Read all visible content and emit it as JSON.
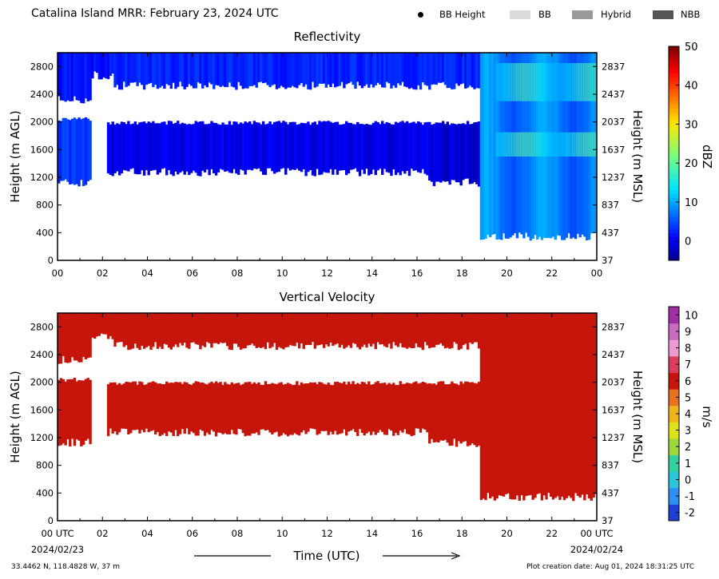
{
  "header": {
    "title": "Catalina Island MRR:  February 23, 2024 UTC",
    "legend": [
      {
        "label": "BB Height",
        "marker": "dot",
        "color": "#000000"
      },
      {
        "label": "BB",
        "marker": "swatch",
        "color": "#dcdcdc"
      },
      {
        "label": "Hybrid",
        "marker": "swatch",
        "color": "#999999"
      },
      {
        "label": "NBB",
        "marker": "swatch",
        "color": "#555555"
      }
    ]
  },
  "chart_data": [
    {
      "type": "heatmap",
      "title": "Reflectivity",
      "ylabel": "Height (m AGL)",
      "y2label": "Height (m MSL)",
      "ylim": [
        0,
        3000
      ],
      "xlim": [
        0,
        24
      ],
      "yticks": [
        0,
        400,
        800,
        1200,
        1600,
        2000,
        2400,
        2800
      ],
      "y2ticks": [
        "37",
        "437",
        "837",
        "1237",
        "1637",
        "2037",
        "2437",
        "2837"
      ],
      "xticks": [
        "00",
        "02",
        "04",
        "06",
        "08",
        "10",
        "12",
        "14",
        "16",
        "18",
        "20",
        "22",
        "00"
      ],
      "colorbar": {
        "label": "dBZ",
        "ticks": [
          0,
          10,
          20,
          30,
          40,
          50
        ],
        "range": [
          -5,
          50
        ],
        "colormap": "jet"
      },
      "echo_layers": [
        {
          "start": 0.0,
          "end": 1.5,
          "bottom": 2300,
          "top": 3000,
          "dbz": 2
        },
        {
          "start": 0.0,
          "end": 1.5,
          "bottom": 1100,
          "top": 2050,
          "dbz": 4
        },
        {
          "start": 1.5,
          "end": 2.5,
          "bottom": 2650,
          "top": 3000,
          "dbz": 2
        },
        {
          "start": 2.5,
          "end": 18.8,
          "bottom": 2500,
          "top": 3000,
          "dbz": 3
        },
        {
          "start": 2.2,
          "end": 16.5,
          "bottom": 1250,
          "top": 2000,
          "dbz": 0
        },
        {
          "start": 16.5,
          "end": 18.8,
          "bottom": 1100,
          "top": 2000,
          "dbz": -1
        },
        {
          "start": 18.8,
          "end": 24.0,
          "bottom": 320,
          "top": 3000,
          "dbz": 8
        }
      ],
      "enhanced_cells": [
        {
          "start": 19.5,
          "end": 24.0,
          "bottom": 2300,
          "top": 2850,
          "dbz": 15
        },
        {
          "start": 19.5,
          "end": 24.0,
          "bottom": 1500,
          "top": 1850,
          "dbz": 16
        }
      ]
    },
    {
      "type": "heatmap",
      "title": "Vertical Velocity",
      "ylabel": "Height (m AGL)",
      "y2label": "Height (m MSL)",
      "xlabel": "Time (UTC)",
      "ylim": [
        0,
        3000
      ],
      "xlim": [
        0,
        24
      ],
      "yticks": [
        0,
        400,
        800,
        1200,
        1600,
        2000,
        2400,
        2800
      ],
      "y2ticks": [
        "37",
        "437",
        "837",
        "1237",
        "1637",
        "2037",
        "2437",
        "2837"
      ],
      "xticks": [
        "00 UTC",
        "02",
        "04",
        "06",
        "08",
        "10",
        "12",
        "14",
        "16",
        "18",
        "20",
        "22",
        "00 UTC"
      ],
      "date_start": "2024/02/23",
      "date_end": "2024/02/24",
      "colorbar": {
        "label": "m/s",
        "ticks": [
          -2,
          -1,
          0,
          1,
          2,
          3,
          4,
          5,
          6,
          7,
          8,
          9,
          10
        ],
        "range": [
          -2.5,
          10.5
        ]
      },
      "velocity_ms": 6
    }
  ],
  "footer": {
    "location": "33.4462 N, 118.4828 W, 37 m",
    "creation_date": "Plot creation date: Aug 01, 2024 18:31:25 UTC"
  }
}
